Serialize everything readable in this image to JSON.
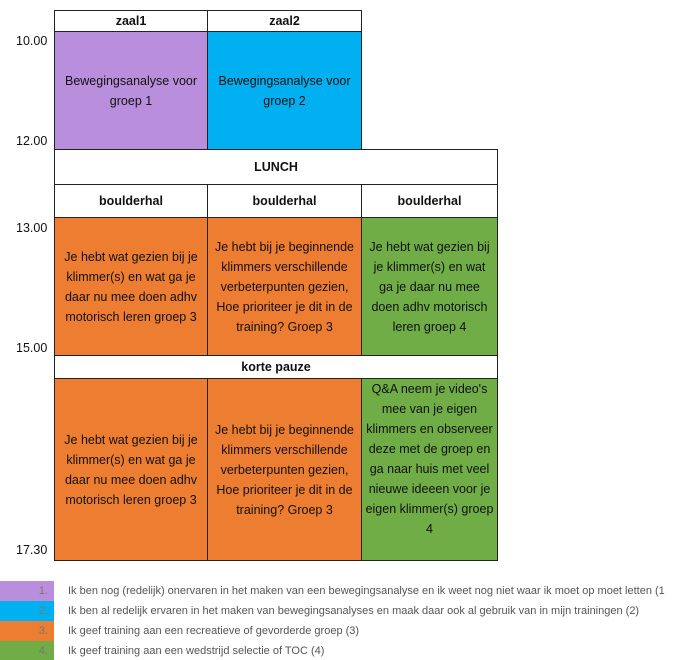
{
  "times": [
    "10.00",
    "12.00",
    "13.00",
    "15.00",
    "17.30"
  ],
  "headers": [
    "zaal1",
    "zaal2"
  ],
  "lunch": "LUNCH",
  "venues": [
    "boulderhal",
    "boulderhal",
    "boulderhal"
  ],
  "pause": "korte pauze",
  "morning": [
    "Bewegingsanalyse voor groep 1",
    "Bewegingsanalyse voor groep 2"
  ],
  "block1": [
    "Je hebt wat gezien bij je klimmer(s) en wat ga je daar nu mee doen adhv motorisch leren groep 3",
    "Je hebt bij je beginnende klimmers verschillende verbeterpunten gezien, Hoe prioriteer je dit in de training? Groep 3",
    "Je hebt wat gezien bij je klimmer(s) en wat ga je daar nu mee doen adhv motorisch leren groep 4"
  ],
  "block2": [
    "Je hebt wat gezien bij je klimmer(s) en wat ga je daar nu mee doen adhv motorisch leren groep 3",
    "Je hebt bij je beginnende klimmers verschillende verbeterpunten gezien, Hoe prioriteer je dit in de training? Groep 3",
    "Q&A neem je video's mee van je eigen klimmers en observeer deze met de groep en ga naar huis met veel nieuwe ideeen voor je eigen klimmer(s) groep 4"
  ],
  "legend": [
    {
      "number": "1.",
      "text": "Ik ben nog (redelijk) onervaren in het maken van een bewegingsanalyse en ik weet nog niet waar ik moet op moet letten (1"
    },
    {
      "number": "2.",
      "text": "Ik ben al redelijk ervaren in het maken van bewegingsanalyses en maak daar ook al gebruik van in mijn trainingen (2)"
    },
    {
      "number": "3.",
      "text": "Ik geef training aan een recreatieve of gevorderde groep (3)"
    },
    {
      "number": "4.",
      "text": "Ik geef training aan een wedstrijd selectie of TOC (4)"
    }
  ]
}
